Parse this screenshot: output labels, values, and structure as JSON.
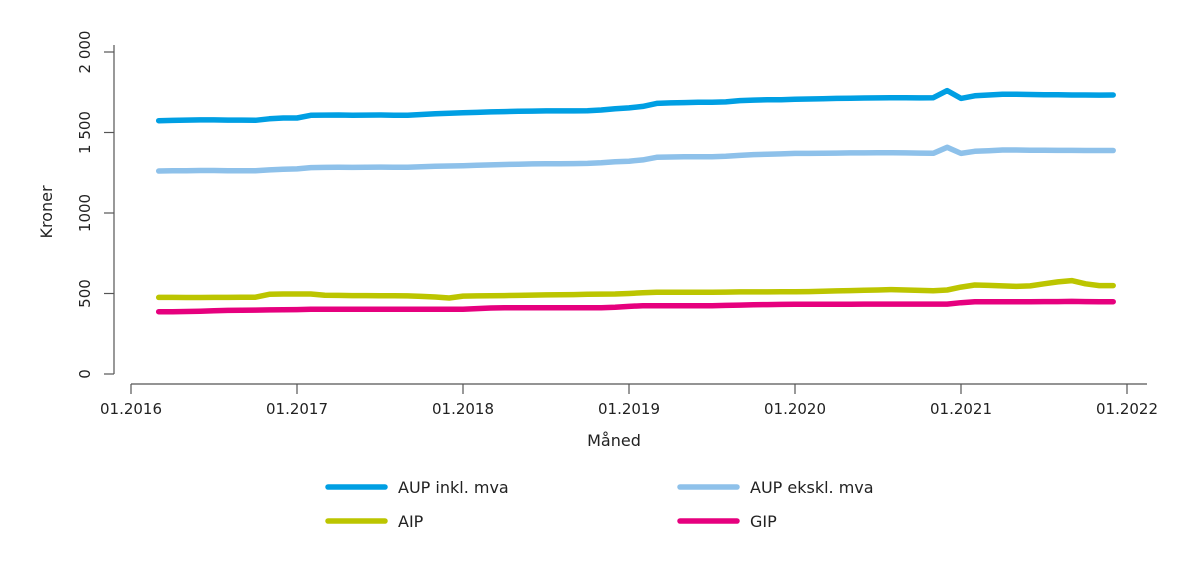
{
  "chart_data": {
    "type": "line",
    "title": "",
    "xlabel": "Måned",
    "ylabel": "Kroner",
    "ylim": [
      0,
      2000
    ],
    "y_ticks": [
      "0",
      "500",
      "1000",
      "1 500",
      "2 000"
    ],
    "y_tick_values": [
      0,
      500,
      1000,
      1500,
      2000
    ],
    "x_ticks": [
      "01.2016",
      "01.2017",
      "01.2018",
      "01.2019",
      "01.2020",
      "01.2021",
      "01.2022"
    ],
    "grid": false,
    "legend_position": "bottom",
    "x": [
      "03.2016",
      "04.2016",
      "05.2016",
      "06.2016",
      "07.2016",
      "08.2016",
      "09.2016",
      "10.2016",
      "11.2016",
      "12.2016",
      "01.2017",
      "02.2017",
      "03.2017",
      "04.2017",
      "05.2017",
      "06.2017",
      "07.2017",
      "08.2017",
      "09.2017",
      "10.2017",
      "11.2017",
      "12.2017",
      "01.2018",
      "02.2018",
      "03.2018",
      "04.2018",
      "05.2018",
      "06.2018",
      "07.2018",
      "08.2018",
      "09.2018",
      "10.2018",
      "11.2018",
      "12.2018",
      "01.2019",
      "02.2019",
      "03.2019",
      "04.2019",
      "05.2019",
      "06.2019",
      "07.2019",
      "08.2019",
      "09.2019",
      "10.2019",
      "11.2019",
      "12.2019",
      "01.2020",
      "02.2020",
      "03.2020",
      "04.2020",
      "05.2020",
      "06.2020",
      "07.2020",
      "08.2020",
      "09.2020",
      "10.2020",
      "11.2020",
      "12.2020",
      "01.2021",
      "02.2021",
      "03.2021",
      "04.2021",
      "05.2021",
      "06.2021",
      "07.2021",
      "08.2021",
      "09.2021",
      "10.2021",
      "11.2021",
      "12.2021"
    ],
    "series": [
      {
        "name": "AUP inkl. mva",
        "color": "#009fe3",
        "values": [
          1573,
          1575,
          1577,
          1578,
          1578,
          1577,
          1577,
          1576,
          1585,
          1590,
          1590,
          1607,
          1608,
          1609,
          1607,
          1608,
          1609,
          1607,
          1607,
          1612,
          1617,
          1620,
          1623,
          1625,
          1628,
          1630,
          1632,
          1633,
          1634,
          1634,
          1634,
          1635,
          1640,
          1648,
          1653,
          1662,
          1681,
          1684,
          1686,
          1688,
          1688,
          1690,
          1698,
          1701,
          1703,
          1704,
          1706,
          1708,
          1710,
          1712,
          1713,
          1714,
          1715,
          1716,
          1716,
          1715,
          1716,
          1760,
          1712,
          1728,
          1733,
          1737,
          1737,
          1736,
          1735,
          1734,
          1733,
          1733,
          1732,
          1733
        ]
      },
      {
        "name": "AUP ekskl. mva",
        "color": "#8ec1ea",
        "values": [
          1261,
          1262,
          1263,
          1264,
          1264,
          1263,
          1263,
          1263,
          1268,
          1272,
          1274,
          1282,
          1283,
          1284,
          1283,
          1284,
          1285,
          1284,
          1284,
          1287,
          1290,
          1292,
          1294,
          1296,
          1299,
          1301,
          1303,
          1305,
          1306,
          1306,
          1307,
          1308,
          1312,
          1318,
          1322,
          1330,
          1346,
          1348,
          1349,
          1350,
          1350,
          1352,
          1358,
          1363,
          1365,
          1367,
          1370,
          1370,
          1371,
          1372,
          1373,
          1373,
          1374,
          1374,
          1373,
          1372,
          1371,
          1408,
          1370,
          1383,
          1387,
          1391,
          1391,
          1390,
          1390,
          1389,
          1389,
          1388,
          1388,
          1388
        ]
      },
      {
        "name": "AIP",
        "color": "#bcc500",
        "values": [
          476,
          476,
          475,
          475,
          476,
          476,
          477,
          477,
          495,
          497,
          497,
          497,
          489,
          488,
          487,
          487,
          486,
          486,
          485,
          482,
          478,
          472,
          484,
          485,
          486,
          487,
          488,
          490,
          491,
          492,
          493,
          495,
          496,
          497,
          500,
          505,
          508,
          508,
          508,
          508,
          508,
          509,
          510,
          510,
          510,
          511,
          511,
          512,
          514,
          516,
          518,
          520,
          522,
          524,
          522,
          519,
          517,
          522,
          540,
          553,
          550,
          547,
          544,
          547,
          560,
          572,
          580,
          560,
          549,
          549
        ]
      },
      {
        "name": "GIP",
        "color": "#e6007e",
        "values": [
          387,
          387,
          388,
          390,
          393,
          395,
          396,
          397,
          398,
          399,
          400,
          402,
          402,
          402,
          402,
          402,
          402,
          402,
          402,
          402,
          402,
          402,
          402,
          406,
          410,
          412,
          412,
          412,
          412,
          412,
          412,
          412,
          412,
          414,
          420,
          424,
          424,
          424,
          424,
          424,
          424,
          426,
          428,
          430,
          431,
          432,
          433,
          433,
          433,
          433,
          433,
          434,
          434,
          434,
          434,
          434,
          434,
          434,
          443,
          449,
          449,
          449,
          449,
          449,
          450,
          450,
          451,
          450,
          449,
          449
        ]
      }
    ]
  }
}
